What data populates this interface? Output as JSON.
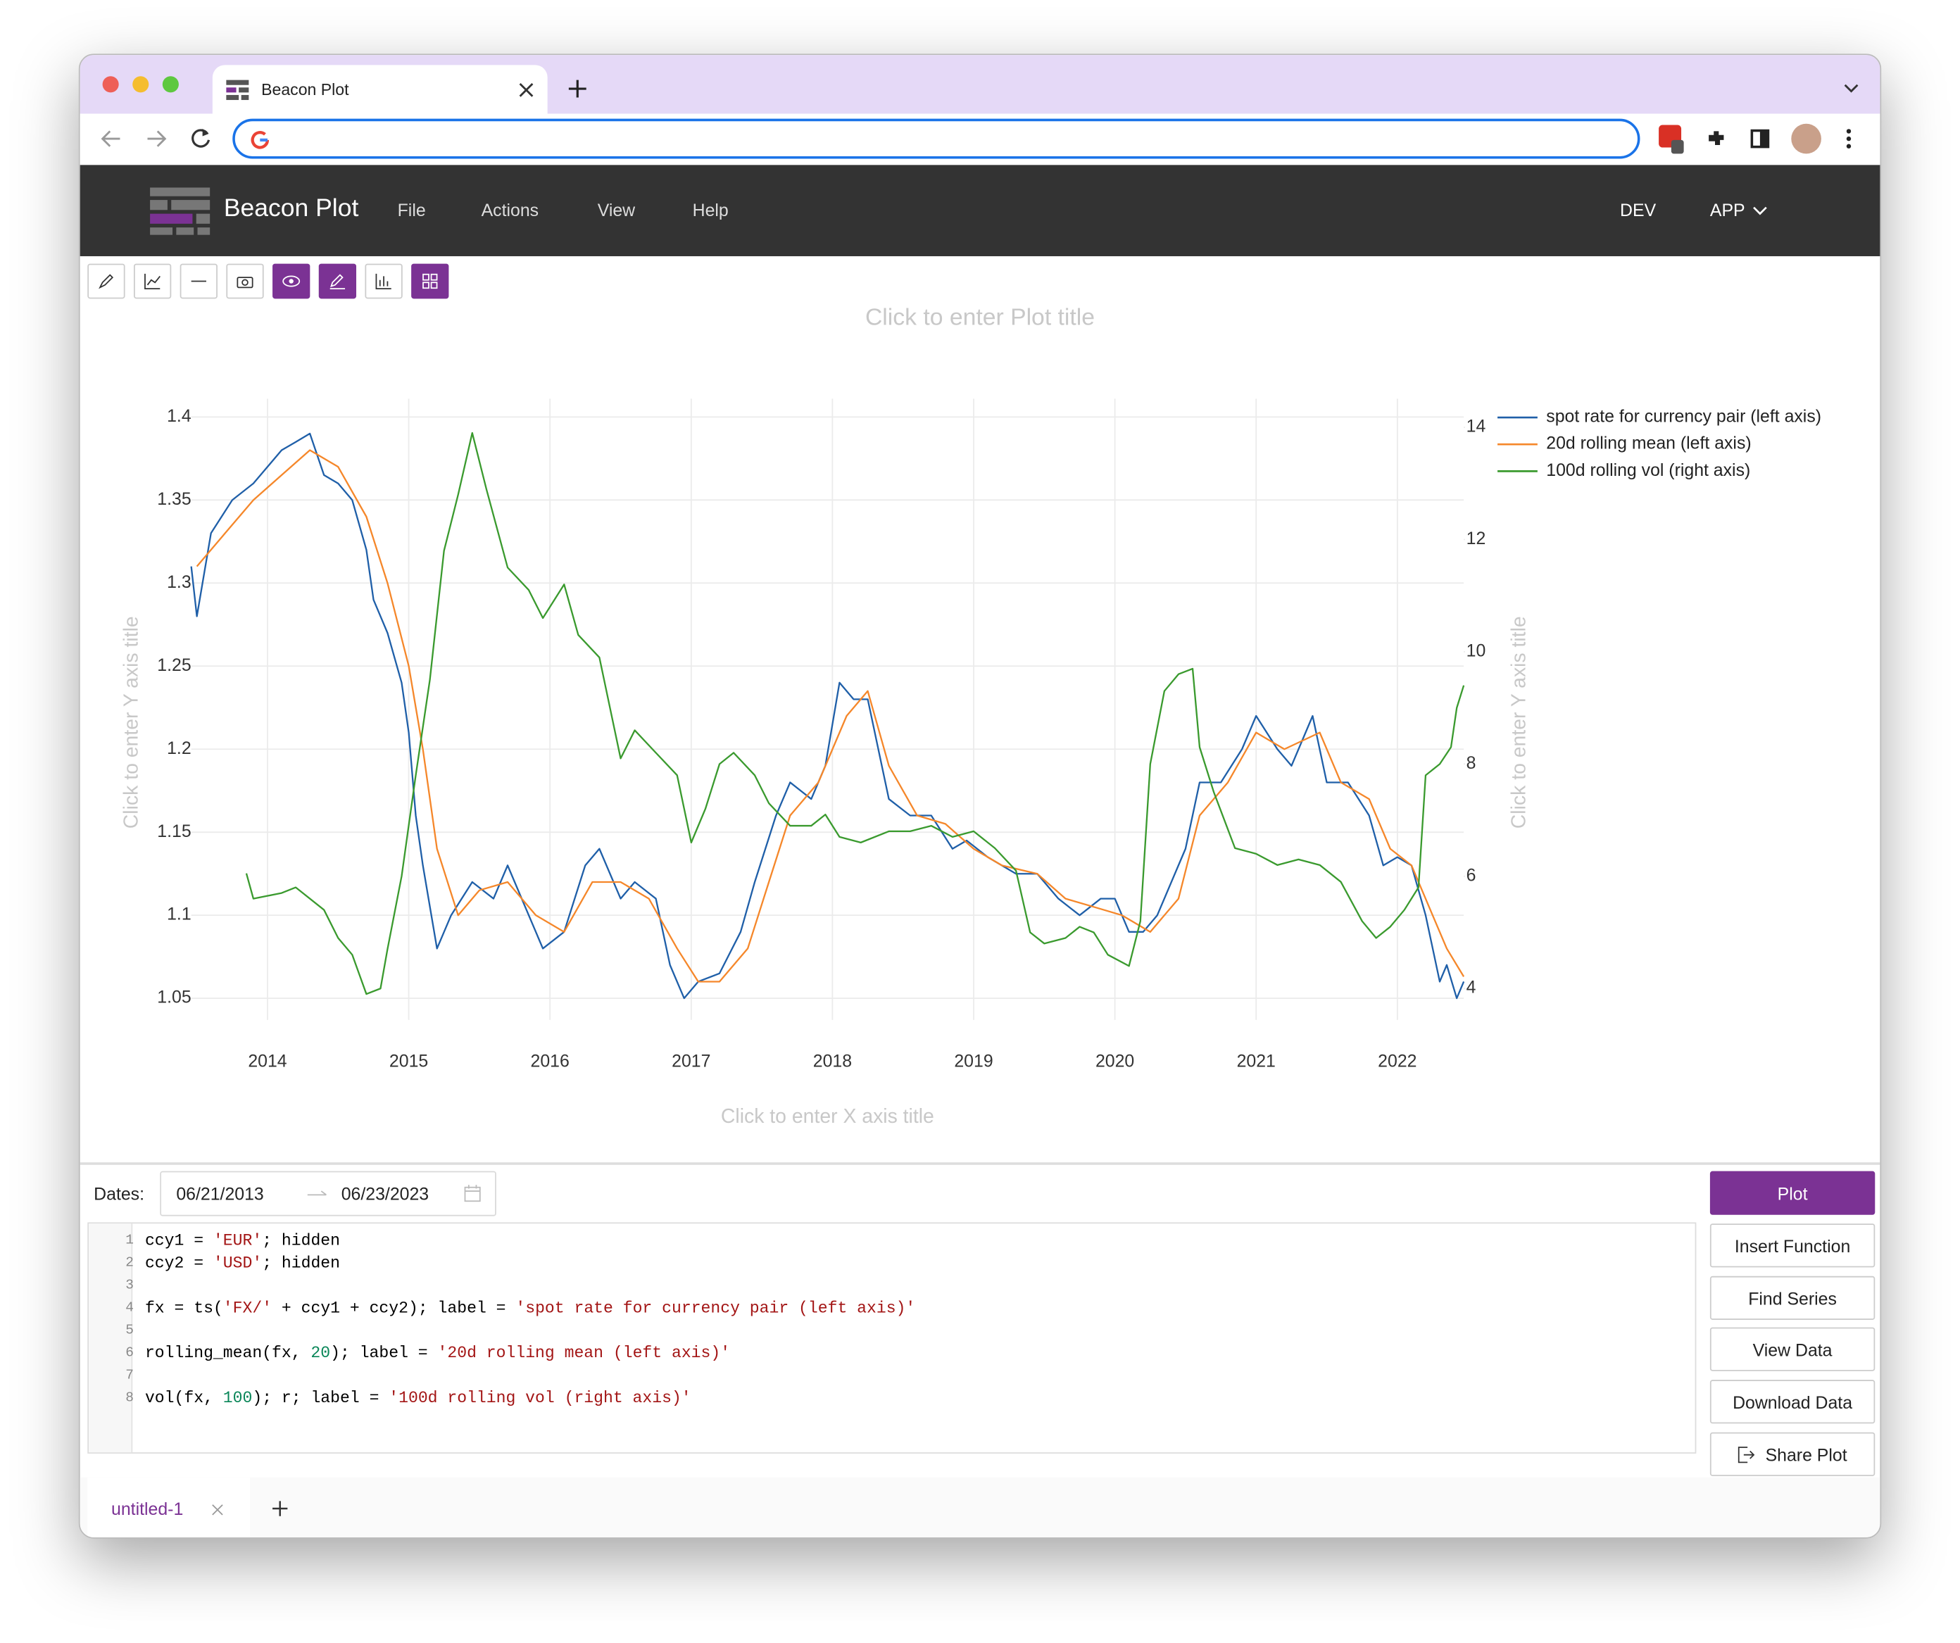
{
  "browser": {
    "tab_title": "Beacon Plot"
  },
  "app": {
    "brand": "Beacon Plot",
    "menu": [
      "File",
      "Actions",
      "View",
      "Help"
    ],
    "env": "DEV",
    "app_menu": "APP"
  },
  "chart_data": {
    "type": "line",
    "title": "Click to enter Plot title",
    "x_label": "Click to enter X axis title",
    "y_label": "Click to enter Y axis title",
    "y2_label": "Click to enter Y axis title",
    "xlim": [
      2013.46,
      2022.47
    ],
    "xticks": [
      2014,
      2015,
      2016,
      2017,
      2018,
      2019,
      2020,
      2021,
      2022
    ],
    "ylim": [
      1.037,
      1.411
    ],
    "yticks": [
      1.05,
      1.1,
      1.15,
      1.2,
      1.25,
      1.3,
      1.35,
      1.4
    ],
    "y2lim": [
      3.44,
      14.51
    ],
    "y2ticks": [
      4,
      6,
      8,
      10,
      12,
      14
    ],
    "grid": true,
    "legend": "right",
    "series": [
      {
        "name": "spot rate for currency pair (left axis)",
        "color": "#1f5fa8",
        "axis": "y",
        "x": [
          2013.46,
          2013.5,
          2013.6,
          2013.75,
          2013.9,
          2014.0,
          2014.1,
          2014.2,
          2014.3,
          2014.4,
          2014.5,
          2014.6,
          2014.7,
          2014.75,
          2014.85,
          2014.95,
          2015.0,
          2015.05,
          2015.1,
          2015.2,
          2015.3,
          2015.45,
          2015.6,
          2015.7,
          2015.85,
          2015.95,
          2016.1,
          2016.25,
          2016.35,
          2016.5,
          2016.6,
          2016.75,
          2016.85,
          2016.95,
          2017.05,
          2017.2,
          2017.35,
          2017.45,
          2017.6,
          2017.7,
          2017.85,
          2017.95,
          2018.05,
          2018.15,
          2018.25,
          2018.4,
          2018.55,
          2018.7,
          2018.85,
          2018.95,
          2019.1,
          2019.3,
          2019.45,
          2019.6,
          2019.75,
          2019.9,
          2020.0,
          2020.1,
          2020.2,
          2020.3,
          2020.4,
          2020.5,
          2020.6,
          2020.75,
          2020.9,
          2021.0,
          2021.15,
          2021.25,
          2021.4,
          2021.5,
          2021.65,
          2021.8,
          2021.9,
          2022.0,
          2022.1,
          2022.2,
          2022.3,
          2022.35,
          2022.42,
          2022.47
        ],
        "values": [
          1.31,
          1.28,
          1.33,
          1.35,
          1.36,
          1.37,
          1.38,
          1.385,
          1.39,
          1.365,
          1.36,
          1.35,
          1.32,
          1.29,
          1.27,
          1.24,
          1.21,
          1.16,
          1.13,
          1.08,
          1.1,
          1.12,
          1.11,
          1.13,
          1.1,
          1.08,
          1.09,
          1.13,
          1.14,
          1.11,
          1.12,
          1.11,
          1.07,
          1.05,
          1.06,
          1.065,
          1.09,
          1.12,
          1.16,
          1.18,
          1.17,
          1.19,
          1.24,
          1.23,
          1.23,
          1.17,
          1.16,
          1.16,
          1.14,
          1.145,
          1.135,
          1.125,
          1.125,
          1.11,
          1.1,
          1.11,
          1.11,
          1.09,
          1.09,
          1.1,
          1.12,
          1.14,
          1.18,
          1.18,
          1.2,
          1.22,
          1.2,
          1.19,
          1.22,
          1.18,
          1.18,
          1.16,
          1.13,
          1.135,
          1.13,
          1.1,
          1.06,
          1.07,
          1.05,
          1.06
        ]
      },
      {
        "name": "20d rolling mean (left axis)",
        "color": "#f5872a",
        "axis": "y",
        "x": [
          2013.5,
          2013.7,
          2013.9,
          2014.1,
          2014.3,
          2014.5,
          2014.7,
          2014.85,
          2015.0,
          2015.1,
          2015.2,
          2015.35,
          2015.5,
          2015.7,
          2015.9,
          2016.1,
          2016.3,
          2016.5,
          2016.7,
          2016.9,
          2017.05,
          2017.2,
          2017.4,
          2017.55,
          2017.7,
          2017.9,
          2018.1,
          2018.25,
          2018.4,
          2018.6,
          2018.8,
          2019.0,
          2019.2,
          2019.45,
          2019.65,
          2019.85,
          2020.05,
          2020.25,
          2020.45,
          2020.6,
          2020.8,
          2021.0,
          2021.2,
          2021.45,
          2021.6,
          2021.8,
          2021.95,
          2022.1,
          2022.25,
          2022.35,
          2022.47
        ],
        "values": [
          1.31,
          1.33,
          1.35,
          1.365,
          1.38,
          1.37,
          1.34,
          1.3,
          1.25,
          1.2,
          1.14,
          1.1,
          1.115,
          1.12,
          1.1,
          1.09,
          1.12,
          1.12,
          1.11,
          1.08,
          1.06,
          1.06,
          1.08,
          1.12,
          1.16,
          1.18,
          1.22,
          1.235,
          1.19,
          1.16,
          1.155,
          1.14,
          1.13,
          1.125,
          1.11,
          1.105,
          1.1,
          1.09,
          1.11,
          1.16,
          1.18,
          1.21,
          1.2,
          1.21,
          1.18,
          1.17,
          1.14,
          1.13,
          1.1,
          1.08,
          1.063
        ]
      },
      {
        "name": "100d rolling vol (right axis)",
        "color": "#3a9a2e",
        "axis": "y2",
        "x": [
          2013.85,
          2013.9,
          2014.1,
          2014.2,
          2014.4,
          2014.5,
          2014.6,
          2014.7,
          2014.8,
          2014.85,
          2014.95,
          2015.05,
          2015.15,
          2015.25,
          2015.35,
          2015.45,
          2015.55,
          2015.7,
          2015.85,
          2015.95,
          2016.1,
          2016.2,
          2016.35,
          2016.5,
          2016.6,
          2016.75,
          2016.9,
          2017.0,
          2017.1,
          2017.2,
          2017.3,
          2017.45,
          2017.55,
          2017.7,
          2017.85,
          2017.95,
          2018.05,
          2018.2,
          2018.4,
          2018.55,
          2018.7,
          2018.85,
          2019.0,
          2019.15,
          2019.3,
          2019.4,
          2019.5,
          2019.65,
          2019.75,
          2019.85,
          2019.95,
          2020.1,
          2020.18,
          2020.25,
          2020.35,
          2020.45,
          2020.55,
          2020.6,
          2020.7,
          2020.85,
          2021.0,
          2021.15,
          2021.3,
          2021.45,
          2021.6,
          2021.75,
          2021.85,
          2021.95,
          2022.05,
          2022.15,
          2022.2,
          2022.3,
          2022.38,
          2022.42,
          2022.47
        ],
        "values": [
          6.05,
          5.6,
          5.7,
          5.8,
          5.4,
          4.9,
          4.6,
          3.9,
          4.0,
          4.7,
          6.0,
          7.8,
          9.5,
          11.8,
          12.8,
          13.9,
          12.9,
          11.5,
          11.1,
          10.6,
          11.2,
          10.3,
          9.9,
          8.1,
          8.6,
          8.2,
          7.8,
          6.6,
          7.2,
          8.0,
          8.2,
          7.8,
          7.3,
          6.9,
          6.9,
          7.1,
          6.7,
          6.6,
          6.8,
          6.8,
          6.9,
          6.7,
          6.8,
          6.5,
          6.1,
          5.0,
          4.8,
          4.9,
          5.1,
          5.0,
          4.6,
          4.4,
          5.2,
          8.0,
          9.3,
          9.6,
          9.7,
          8.3,
          7.5,
          6.5,
          6.4,
          6.2,
          6.3,
          6.2,
          5.9,
          5.2,
          4.9,
          5.1,
          5.4,
          5.8,
          7.8,
          8.0,
          8.3,
          9.0,
          9.4
        ]
      }
    ]
  },
  "dates": {
    "label": "Dates:",
    "start": "06/21/2013",
    "end": "06/23/2023"
  },
  "editor": {
    "line_numbers": [
      1,
      2,
      3,
      4,
      5,
      6,
      7,
      8
    ],
    "code": [
      {
        "line": 1,
        "text": "ccy1 = 'EUR'; hidden"
      },
      {
        "line": 2,
        "text": "ccy2 = 'USD'; hidden"
      },
      {
        "line": 4,
        "text": "fx = ts('FX/' + ccy1 + ccy2); label = 'spot rate for currency pair (left axis)'"
      },
      {
        "line": 6,
        "text": "rolling_mean(fx, 20); label = '20d rolling mean (left axis)'"
      },
      {
        "line": 8,
        "text": "vol(fx, 100); r; label = '100d rolling vol (right axis)'"
      }
    ]
  },
  "buttons": [
    "Plot",
    "Insert Function",
    "Find Series",
    "View Data",
    "Download Data",
    "Share Plot"
  ],
  "tabs": [
    "untitled-1"
  ]
}
